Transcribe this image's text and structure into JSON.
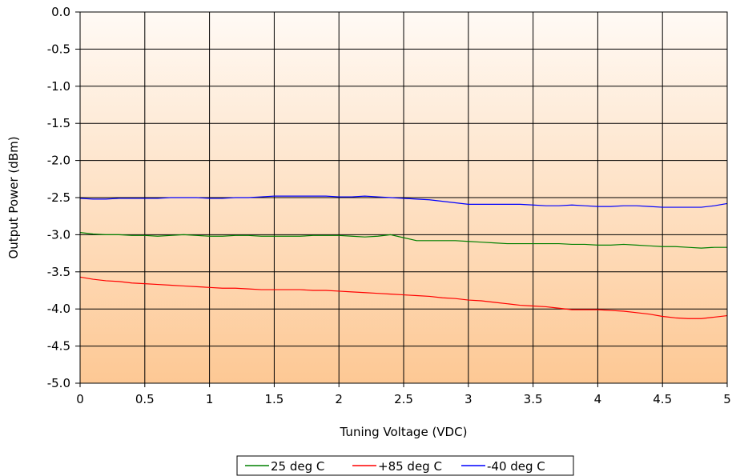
{
  "chart_data": {
    "type": "line",
    "title": "",
    "xlabel": "Tuning Voltage (VDC)",
    "ylabel": "Output Power (dBm)",
    "xlim": [
      0,
      5
    ],
    "ylim": [
      -5.0,
      0.0
    ],
    "x_ticks": [
      "0",
      "0.5",
      "1",
      "1.5",
      "2",
      "2.5",
      "3",
      "3.5",
      "4",
      "4.5",
      "5"
    ],
    "y_ticks": [
      "0.0",
      "-0.5",
      "-1.0",
      "-1.5",
      "-2.0",
      "-2.5",
      "-3.0",
      "-3.5",
      "-4.0",
      "-4.5",
      "-5.0"
    ],
    "grid": true,
    "legend_position": "bottom-center",
    "background": {
      "top_color": "#fffaf5",
      "bottom_color": "#fdc894"
    },
    "series": [
      {
        "name": "25 deg C",
        "color": "#008000",
        "x": [
          0,
          0.1,
          0.2,
          0.3,
          0.4,
          0.5,
          0.6,
          0.7,
          0.8,
          0.9,
          1.0,
          1.1,
          1.2,
          1.3,
          1.4,
          1.5,
          1.6,
          1.7,
          1.8,
          1.9,
          2.0,
          2.1,
          2.2,
          2.3,
          2.4,
          2.5,
          2.6,
          2.7,
          2.8,
          2.9,
          3.0,
          3.1,
          3.2,
          3.3,
          3.4,
          3.5,
          3.6,
          3.7,
          3.8,
          3.9,
          4.0,
          4.1,
          4.2,
          4.3,
          4.4,
          4.5,
          4.6,
          4.7,
          4.8,
          4.9,
          5.0
        ],
        "y": [
          -2.97,
          -2.99,
          -3.0,
          -3.0,
          -3.01,
          -3.01,
          -3.02,
          -3.01,
          -3.0,
          -3.01,
          -3.02,
          -3.02,
          -3.01,
          -3.01,
          -3.02,
          -3.02,
          -3.02,
          -3.02,
          -3.01,
          -3.01,
          -3.01,
          -3.02,
          -3.03,
          -3.02,
          -3.0,
          -3.04,
          -3.08,
          -3.08,
          -3.08,
          -3.08,
          -3.09,
          -3.1,
          -3.11,
          -3.12,
          -3.12,
          -3.12,
          -3.12,
          -3.12,
          -3.13,
          -3.13,
          -3.14,
          -3.14,
          -3.13,
          -3.14,
          -3.15,
          -3.16,
          -3.16,
          -3.17,
          -3.18,
          -3.17,
          -3.17
        ]
      },
      {
        "name": "+85 deg C",
        "color": "#ff0000",
        "x": [
          0,
          0.1,
          0.2,
          0.3,
          0.4,
          0.5,
          0.6,
          0.7,
          0.8,
          0.9,
          1.0,
          1.1,
          1.2,
          1.3,
          1.4,
          1.5,
          1.6,
          1.7,
          1.8,
          1.9,
          2.0,
          2.1,
          2.2,
          2.3,
          2.4,
          2.5,
          2.6,
          2.7,
          2.8,
          2.9,
          3.0,
          3.1,
          3.2,
          3.3,
          3.4,
          3.5,
          3.6,
          3.7,
          3.8,
          3.9,
          4.0,
          4.1,
          4.2,
          4.3,
          4.4,
          4.5,
          4.6,
          4.7,
          4.8,
          4.9,
          5.0
        ],
        "y": [
          -3.57,
          -3.6,
          -3.62,
          -3.63,
          -3.65,
          -3.66,
          -3.67,
          -3.68,
          -3.69,
          -3.7,
          -3.71,
          -3.72,
          -3.72,
          -3.73,
          -3.74,
          -3.74,
          -3.74,
          -3.74,
          -3.75,
          -3.75,
          -3.76,
          -3.77,
          -3.78,
          -3.79,
          -3.8,
          -3.81,
          -3.82,
          -3.83,
          -3.85,
          -3.86,
          -3.88,
          -3.89,
          -3.91,
          -3.93,
          -3.95,
          -3.96,
          -3.97,
          -3.99,
          -4.01,
          -4.01,
          -4.01,
          -4.02,
          -4.03,
          -4.05,
          -4.07,
          -4.1,
          -4.12,
          -4.13,
          -4.13,
          -4.11,
          -4.09
        ]
      },
      {
        "name": "-40 deg C",
        "color": "#0000ff",
        "x": [
          0,
          0.1,
          0.2,
          0.3,
          0.4,
          0.5,
          0.6,
          0.7,
          0.8,
          0.9,
          1.0,
          1.1,
          1.2,
          1.3,
          1.4,
          1.5,
          1.6,
          1.7,
          1.8,
          1.9,
          2.0,
          2.1,
          2.2,
          2.3,
          2.4,
          2.5,
          2.6,
          2.7,
          2.8,
          2.9,
          3.0,
          3.1,
          3.2,
          3.3,
          3.4,
          3.5,
          3.6,
          3.7,
          3.8,
          3.9,
          4.0,
          4.1,
          4.2,
          4.3,
          4.4,
          4.5,
          4.6,
          4.7,
          4.8,
          4.9,
          5.0
        ],
        "y": [
          -2.51,
          -2.52,
          -2.52,
          -2.51,
          -2.51,
          -2.51,
          -2.51,
          -2.5,
          -2.5,
          -2.5,
          -2.51,
          -2.51,
          -2.5,
          -2.5,
          -2.49,
          -2.48,
          -2.48,
          -2.48,
          -2.48,
          -2.48,
          -2.49,
          -2.49,
          -2.48,
          -2.49,
          -2.5,
          -2.51,
          -2.52,
          -2.53,
          -2.55,
          -2.57,
          -2.59,
          -2.59,
          -2.59,
          -2.59,
          -2.59,
          -2.6,
          -2.61,
          -2.61,
          -2.6,
          -2.61,
          -2.62,
          -2.62,
          -2.61,
          -2.61,
          -2.62,
          -2.63,
          -2.63,
          -2.63,
          -2.63,
          -2.61,
          -2.58
        ]
      }
    ]
  }
}
